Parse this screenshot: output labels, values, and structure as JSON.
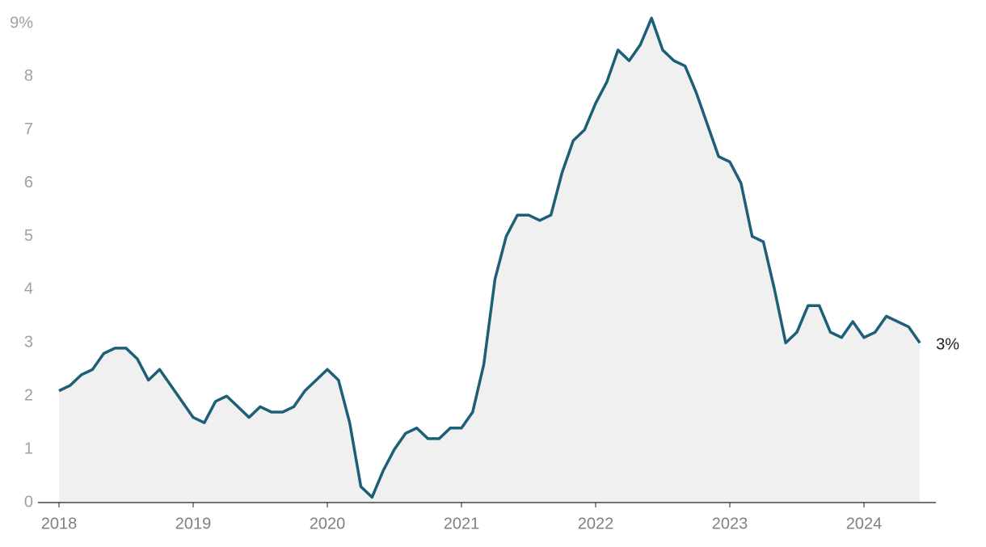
{
  "chart_data": {
    "type": "area",
    "categories": [
      "2018",
      null,
      null,
      null,
      null,
      null,
      null,
      null,
      null,
      null,
      null,
      null,
      "2019",
      null,
      null,
      null,
      null,
      null,
      null,
      null,
      null,
      null,
      null,
      null,
      "2020",
      null,
      null,
      null,
      null,
      null,
      null,
      null,
      null,
      null,
      null,
      null,
      "2021",
      null,
      null,
      null,
      null,
      null,
      null,
      null,
      null,
      null,
      null,
      null,
      "2022",
      null,
      null,
      null,
      null,
      null,
      null,
      null,
      null,
      null,
      null,
      null,
      "2023",
      null,
      null,
      null,
      null,
      null,
      null,
      null,
      null,
      null,
      null,
      null,
      "2024",
      null,
      null,
      null,
      null,
      null
    ],
    "values": [
      2.1,
      2.2,
      2.4,
      2.5,
      2.8,
      2.9,
      2.9,
      2.7,
      2.3,
      2.5,
      2.2,
      1.9,
      1.6,
      1.5,
      1.9,
      2.0,
      1.8,
      1.6,
      1.8,
      1.7,
      1.7,
      1.8,
      2.1,
      2.3,
      2.5,
      2.3,
      1.5,
      0.3,
      0.1,
      0.6,
      1.0,
      1.3,
      1.4,
      1.2,
      1.2,
      1.4,
      1.4,
      1.7,
      2.6,
      4.2,
      5.0,
      5.4,
      5.4,
      5.3,
      5.4,
      6.2,
      6.8,
      7.0,
      7.5,
      7.9,
      8.5,
      8.3,
      8.6,
      9.1,
      8.5,
      8.3,
      8.2,
      7.7,
      7.1,
      6.5,
      6.4,
      6.0,
      5.0,
      4.9,
      4.0,
      3.0,
      3.2,
      3.7,
      3.7,
      3.2,
      3.1,
      3.4,
      3.1,
      3.2,
      3.5,
      3.4,
      3.3,
      3.0
    ],
    "value_labels": [
      null,
      null,
      null,
      null,
      null,
      null,
      null,
      null,
      null,
      null,
      null,
      null,
      null,
      null,
      null,
      null,
      null,
      null,
      null,
      null,
      null,
      null,
      null,
      null,
      null,
      null,
      null,
      null,
      null,
      null,
      null,
      null,
      null,
      null,
      null,
      null,
      null,
      null,
      null,
      null,
      null,
      null,
      null,
      null,
      null,
      null,
      null,
      null,
      null,
      null,
      null,
      null,
      null,
      null,
      null,
      null,
      null,
      null,
      null,
      null,
      null,
      null,
      null,
      null,
      null,
      null,
      null,
      null,
      null,
      null,
      null,
      null,
      null,
      null,
      null,
      null,
      null,
      "3%"
    ],
    "color": "#1e5f78",
    "fill": "#f0f0f0",
    "ylim": [
      0,
      9
    ],
    "yticks": [
      0,
      1,
      2,
      3,
      4,
      5,
      6,
      7,
      8,
      {
        "value": 9,
        "label": "9%"
      }
    ],
    "grid": false
  }
}
